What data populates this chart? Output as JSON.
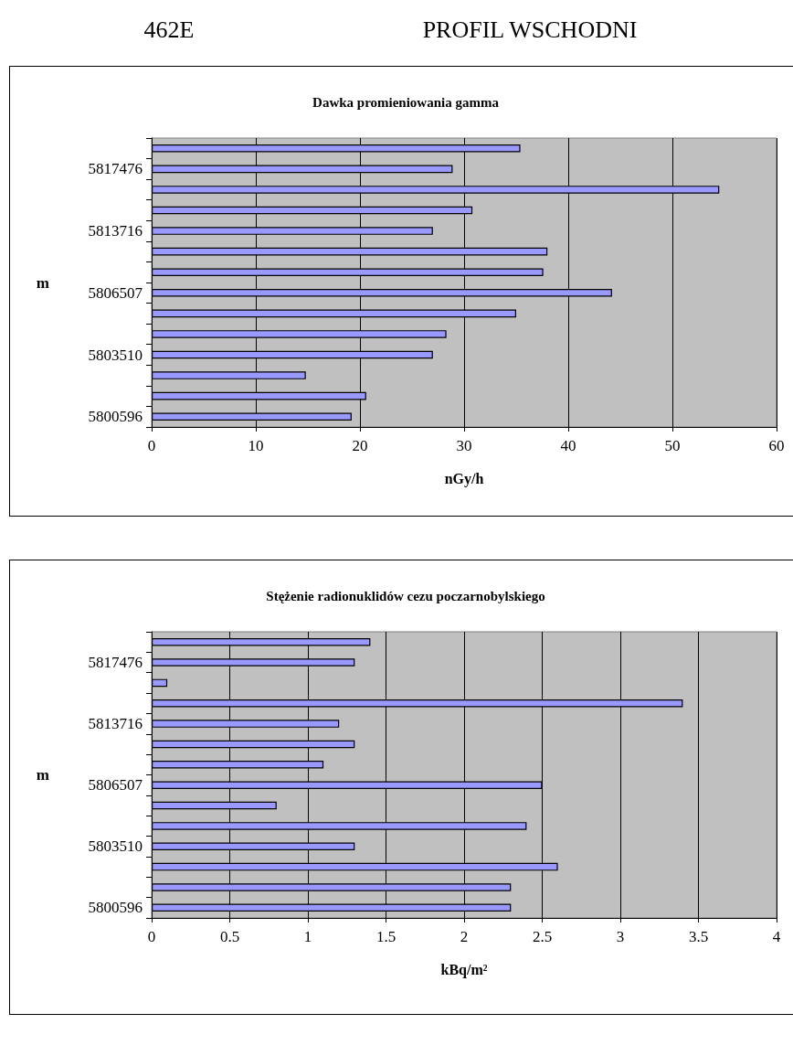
{
  "chart_data": [
    {
      "type": "bar",
      "orientation": "horizontal",
      "title": "Dawka promieniowania gamma",
      "xlabel": "nGy/h",
      "ylabel": "m",
      "annotations": [
        "462E",
        "PROFIL WSCHODNI"
      ],
      "categories": [
        null,
        "5817476",
        null,
        null,
        "5813716",
        null,
        null,
        "5806507",
        null,
        null,
        "5803510",
        null,
        null,
        "5800596"
      ],
      "values": [
        35.4,
        28.9,
        54.5,
        30.8,
        27.0,
        38.0,
        37.6,
        44.2,
        35.0,
        28.3,
        27.0,
        14.8,
        20.6,
        19.2
      ],
      "color": "#9999ff",
      "xlim": [
        0,
        60
      ],
      "xticks": [
        0,
        10,
        20,
        30,
        40,
        50,
        60
      ],
      "grid": "x"
    },
    {
      "type": "bar",
      "orientation": "horizontal",
      "title": "Stężenie radionuklidów cezu poczarnobylskiego",
      "xlabel": "kBq/m²",
      "ylabel": "m",
      "categories": [
        null,
        "5817476",
        null,
        null,
        "5813716",
        null,
        null,
        "5806507",
        null,
        null,
        "5803510",
        null,
        null,
        "5800596"
      ],
      "values": [
        1.4,
        1.3,
        0.1,
        3.4,
        1.2,
        1.3,
        1.1,
        2.5,
        0.8,
        2.4,
        1.3,
        2.6,
        2.3,
        2.3
      ],
      "color": "#9999ff",
      "xlim": [
        0,
        4
      ],
      "xticks": [
        0,
        0.5,
        1,
        1.5,
        2,
        2.5,
        3,
        3.5,
        4
      ],
      "grid": "x"
    }
  ]
}
